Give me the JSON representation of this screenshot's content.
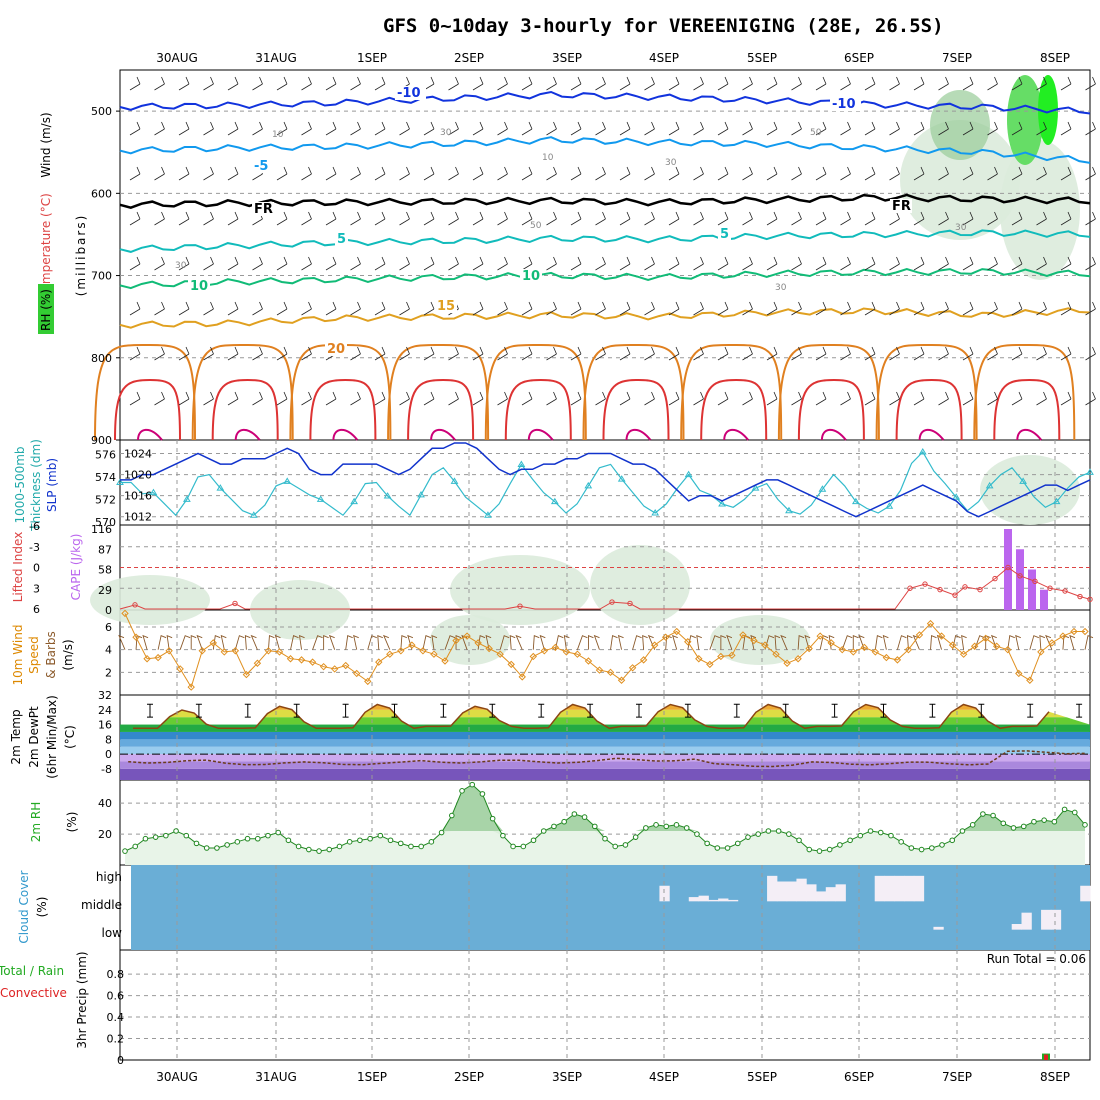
{
  "title": "GFS 0~10day 3-hourly for VEREENIGING (28E, 26.5S)",
  "dates": [
    "30AUG",
    "31AUG",
    "1SEP",
    "2SEP",
    "3SEP",
    "4SEP",
    "5SEP",
    "6SEP",
    "7SEP",
    "8SEP"
  ],
  "run_total_label": "Run Total = 0.06",
  "panel_labels": {
    "upper": [
      "Wind (m/s)",
      "Temperature (°C)",
      "RH (%)",
      "(millibars)"
    ],
    "thickness": [
      "1000-500mb",
      "Thickness (dm)",
      "SLP (mb)"
    ],
    "cape": [
      "Lifted Index",
      "CAPE (J/kg)"
    ],
    "wind10": [
      "10m Wind",
      "Speed",
      "(m/s)",
      "& Barbs"
    ],
    "temp2m": [
      "2m Temp",
      "2m DewPt",
      "(6hr Min/Max)",
      "(°C)"
    ],
    "rh2m": [
      "2m RH",
      "(%)"
    ],
    "cloud": [
      "Cloud Cover",
      "(%)"
    ],
    "precip": [
      "Total / Rain",
      "Convective",
      "3hr Precip (mm)"
    ]
  },
  "colors": {
    "total": "#22aa22",
    "convective": "#dd2222",
    "thickness": "#33bbcc",
    "slp": "#1133cc",
    "cape": "#bb66ee",
    "li": "#dd4444",
    "wind": "#e09020",
    "rh": "#228822",
    "cloud": "#6aaed6",
    "accent": "#dd8800"
  },
  "chart_data": [
    {
      "type": "heatmap",
      "name_printed": "upper air time-height section",
      "ylabel": "(millibars)",
      "yticks": [
        "500",
        "600",
        "700",
        "800",
        "900"
      ],
      "ylim": [
        450,
        900
      ],
      "contour_labels": {
        "temperature": [
          "-10",
          "-10",
          "-5",
          "FR",
          "FR",
          "5",
          "5",
          "10",
          "10",
          "15",
          "20"
        ],
        "rh": [
          "10",
          "30",
          "10",
          "50",
          "30",
          "50",
          "30",
          "30",
          "30"
        ]
      },
      "temperature_levels_mb": [
        {
          "label": "-10",
          "p": [
            495,
            493,
            490,
            485,
            480,
            483,
            487,
            492,
            495,
            500
          ]
        },
        {
          "label": "-5",
          "p": [
            548,
            545,
            543,
            540,
            535,
            538,
            540,
            545,
            550,
            560
          ]
        },
        {
          "label": "FR",
          "p": [
            614,
            612,
            611,
            610,
            609,
            611,
            608,
            605,
            607,
            609
          ]
        },
        {
          "label": "5",
          "p": [
            668,
            664,
            660,
            658,
            655,
            656,
            652,
            650,
            648,
            650
          ]
        },
        {
          "label": "10",
          "p": [
            712,
            708,
            705,
            702,
            700,
            702,
            698,
            696,
            695,
            698
          ]
        },
        {
          "label": "15",
          "p": [
            760,
            758,
            752,
            750,
            748,
            750,
            745,
            743,
            748,
            742
          ]
        }
      ]
    },
    {
      "type": "line",
      "name_printed": "1000-500mb Thickness (dm) / SLP (mb)",
      "yleft_ticks": [
        "570",
        "572",
        "574",
        "576"
      ],
      "yright_ticks": [
        "1012",
        "1016",
        "1020",
        "1024"
      ],
      "series": [
        {
          "name": "1000-500mb Thickness",
          "axis": "left",
          "values": [
            573.5,
            573.5,
            572.5,
            572.6,
            571.6,
            570.6,
            572.0,
            574.0,
            574.2,
            573.0,
            572.0,
            571.0,
            570.6,
            571.5,
            573.2,
            573.6,
            573.0,
            572.4,
            572.0,
            571.3,
            570.6,
            571.8,
            573.4,
            573.5,
            572.3,
            571.4,
            570.6,
            572.4,
            574.2,
            574.8,
            573.6,
            572.2,
            571.4,
            570.6,
            571.6,
            573.4,
            575.1,
            573.8,
            572.6,
            571.8,
            570.8,
            571.6,
            573.2,
            574.8,
            575.1,
            573.8,
            572.6,
            571.4,
            570.8,
            571.6,
            573.0,
            574.2,
            572.8,
            572.4,
            571.6,
            571.3,
            572.0,
            573.0,
            573.4,
            572.0,
            571.0,
            570.7,
            571.5,
            572.9,
            574.2,
            573.2,
            571.8,
            571.2,
            570.8,
            571.4,
            572.8,
            575.2,
            576.2,
            574.5,
            573.4,
            572.2,
            571.0,
            571.8,
            573.2,
            574.2,
            574.8,
            573.6,
            572.2,
            571.3,
            571.8,
            573.0,
            574.0,
            574.4
          ]
        },
        {
          "name": "SLP",
          "axis": "right",
          "values": [
            1019,
            1019,
            1020,
            1020,
            1021,
            1022,
            1023,
            1024,
            1023,
            1022,
            1022,
            1023,
            1023,
            1023,
            1024,
            1025,
            1024,
            1021,
            1020,
            1020,
            1022,
            1022,
            1022,
            1022,
            1021,
            1020,
            1021,
            1023,
            1025,
            1025,
            1026,
            1026,
            1025,
            1023,
            1021,
            1020,
            1021,
            1021,
            1022,
            1022,
            1023,
            1023,
            1024,
            1024,
            1024,
            1023,
            1022,
            1022,
            1021,
            1019,
            1017,
            1015,
            1016,
            1016,
            1015,
            1016,
            1017,
            1018,
            1019,
            1019,
            1018,
            1017,
            1016,
            1015,
            1014,
            1013,
            1012,
            1013,
            1014,
            1015,
            1016,
            1017,
            1018,
            1017,
            1016,
            1015,
            1013,
            1012,
            1013,
            1014,
            1015,
            1016,
            1017,
            1018,
            1018,
            1017,
            1018,
            1019
          ]
        }
      ]
    },
    {
      "type": "bar",
      "name_printed": "Lifted Index / CAPE (J/kg)",
      "yleft_ticks": [
        "6",
        "3",
        "0",
        "-3",
        "-6"
      ],
      "yright_ticks": [
        "0",
        "29",
        "58",
        "87",
        "116"
      ],
      "cape_bars": [
        {
          "x": "7SEP 09",
          "value": 116
        },
        {
          "x": "7SEP 12",
          "value": 87
        },
        {
          "x": "7SEP 15",
          "value": 58
        },
        {
          "x": "7SEP 18",
          "value": 29
        }
      ],
      "lifted_index": [
        {
          "x": "30AUG 00",
          "value": 5.2
        },
        {
          "x": "30AUG 15",
          "value": 5.3
        },
        {
          "x": "2SEP 12",
          "value": 5.8
        },
        {
          "x": "3SEP 12",
          "value": 5.5
        },
        {
          "x": "6SEP 09",
          "value": 2.4
        },
        {
          "x": "7SEP 09",
          "value": 0.6
        },
        {
          "x": "8SEP 09",
          "value": 3.6
        }
      ]
    },
    {
      "type": "line",
      "name_printed": "10m Wind Speed (m/s)",
      "yticks": [
        "2",
        "4",
        "6"
      ],
      "ylim": [
        0,
        7.5
      ],
      "values": [
        7.2,
        5.1,
        3.2,
        3.3,
        3.9,
        2.3,
        0.7,
        3.9,
        4.6,
        3.8,
        3.9,
        1.8,
        2.8,
        3.9,
        3.8,
        3.2,
        3.1,
        2.9,
        2.5,
        2.3,
        2.6,
        1.9,
        1.2,
        2.9,
        3.6,
        3.9,
        4.4,
        3.9,
        3.6,
        3.0,
        4.8,
        5.2,
        4.6,
        4.1,
        3.6,
        2.7,
        1.6,
        3.4,
        3.9,
        4.2,
        3.8,
        3.6,
        3.0,
        2.2,
        2.0,
        1.3,
        2.4,
        3.1,
        4.4,
        5.1,
        5.6,
        4.7,
        3.2,
        2.7,
        3.4,
        3.5,
        5.3,
        4.8,
        4.4,
        3.6,
        2.8,
        3.2,
        4.1,
        5.2,
        4.6,
        4.0,
        3.8,
        4.2,
        3.8,
        3.3,
        3.1,
        4.0,
        5.3,
        6.3,
        5.2,
        4.4,
        3.6,
        4.3,
        5.0,
        4.3,
        4.0,
        1.9,
        1.3,
        3.8,
        4.6,
        5.2,
        5.6,
        5.6
      ]
    },
    {
      "type": "line",
      "name_printed": "2m Temp / 2m DewPt (6hr Min/Max) (°C)",
      "yticks": [
        "-8",
        "0",
        "8",
        "16",
        "24",
        "32"
      ],
      "ylim": [
        -14,
        32
      ],
      "temp_max": [
        24,
        26,
        27,
        26,
        27,
        27,
        27,
        27,
        27,
        27
      ],
      "temp_min": [
        13,
        14,
        14,
        15,
        14,
        15,
        14,
        15,
        14,
        15
      ],
      "dewpt": [
        -4,
        -5,
        -5,
        -4,
        -4,
        -3,
        -6,
        -5,
        -5,
        1
      ]
    },
    {
      "type": "line",
      "name_printed": "2m RH (%)",
      "yticks": [
        "20",
        "40"
      ],
      "ylim": [
        0,
        55
      ],
      "values": [
        9,
        12,
        17,
        18,
        19,
        22,
        19,
        14,
        11,
        11,
        13,
        15,
        17,
        17,
        19,
        21,
        16,
        12,
        10,
        9,
        10,
        12,
        15,
        16,
        17,
        19,
        16,
        14,
        12,
        12,
        15,
        21,
        32,
        48,
        52,
        46,
        30,
        19,
        12,
        12,
        16,
        22,
        25,
        28,
        33,
        31,
        25,
        17,
        12,
        13,
        18,
        24,
        26,
        25,
        26,
        24,
        20,
        14,
        11,
        11,
        14,
        18,
        20,
        22,
        22,
        20,
        16,
        10,
        9,
        10,
        13,
        16,
        19,
        22,
        21,
        19,
        15,
        11,
        10,
        11,
        13,
        16,
        22,
        26,
        33,
        32,
        27,
        24,
        25,
        28,
        29,
        28,
        36,
        34,
        26
      ]
    },
    {
      "type": "bar",
      "name_printed": "Cloud Cover (%)",
      "layers": [
        "high",
        "middle",
        "low"
      ],
      "high": [
        0,
        0,
        0,
        0,
        0,
        0,
        0,
        0,
        0,
        0,
        0,
        0,
        0,
        0,
        0,
        0,
        0,
        0,
        0,
        0,
        0,
        0,
        0,
        0,
        0,
        0,
        0,
        0,
        0,
        0,
        0,
        0,
        0,
        0,
        0,
        0,
        0,
        0,
        0,
        0,
        0,
        0,
        0,
        0,
        0,
        0,
        0,
        0,
        0,
        0,
        0,
        0,
        0,
        0,
        55,
        0,
        0,
        15,
        20,
        5,
        10,
        5,
        0,
        0,
        0,
        90,
        70,
        70,
        80,
        60,
        35,
        50,
        60,
        0,
        0,
        0,
        90,
        90,
        90,
        90,
        90,
        0,
        0,
        0,
        0,
        0,
        0,
        0,
        0,
        0,
        0,
        0,
        0,
        0,
        0,
        0,
        0,
        55
      ],
      "middle": [
        0,
        0,
        0,
        0,
        0,
        0,
        0,
        0,
        0,
        0,
        0,
        0,
        0,
        0,
        0,
        0,
        0,
        0,
        0,
        0,
        0,
        0,
        0,
        0,
        0,
        0,
        0,
        0,
        0,
        0,
        0,
        0,
        0,
        0,
        0,
        0,
        0,
        0,
        0,
        0,
        0,
        0,
        0,
        0,
        0,
        0,
        0,
        0,
        0,
        0,
        0,
        0,
        0,
        0,
        0,
        0,
        0,
        0,
        0,
        0,
        0,
        0,
        0,
        0,
        0,
        0,
        0,
        0,
        0,
        0,
        0,
        0,
        0,
        0,
        0,
        0,
        0,
        0,
        0,
        0,
        0,
        0,
        10,
        0,
        0,
        0,
        0,
        0,
        0,
        0,
        20,
        60,
        0,
        70,
        70,
        0,
        0,
        0
      ]
    },
    {
      "type": "bar",
      "name_printed": "3hr Precip (mm)",
      "yticks": [
        "0",
        "0.2",
        "0.4",
        "0.6",
        "0.8"
      ],
      "ylim": [
        0,
        1
      ],
      "total": [
        {
          "x": "7SEP 21",
          "value": 0.06
        }
      ],
      "convective": [
        {
          "x": "7SEP 21",
          "value": 0.06
        }
      ]
    }
  ]
}
